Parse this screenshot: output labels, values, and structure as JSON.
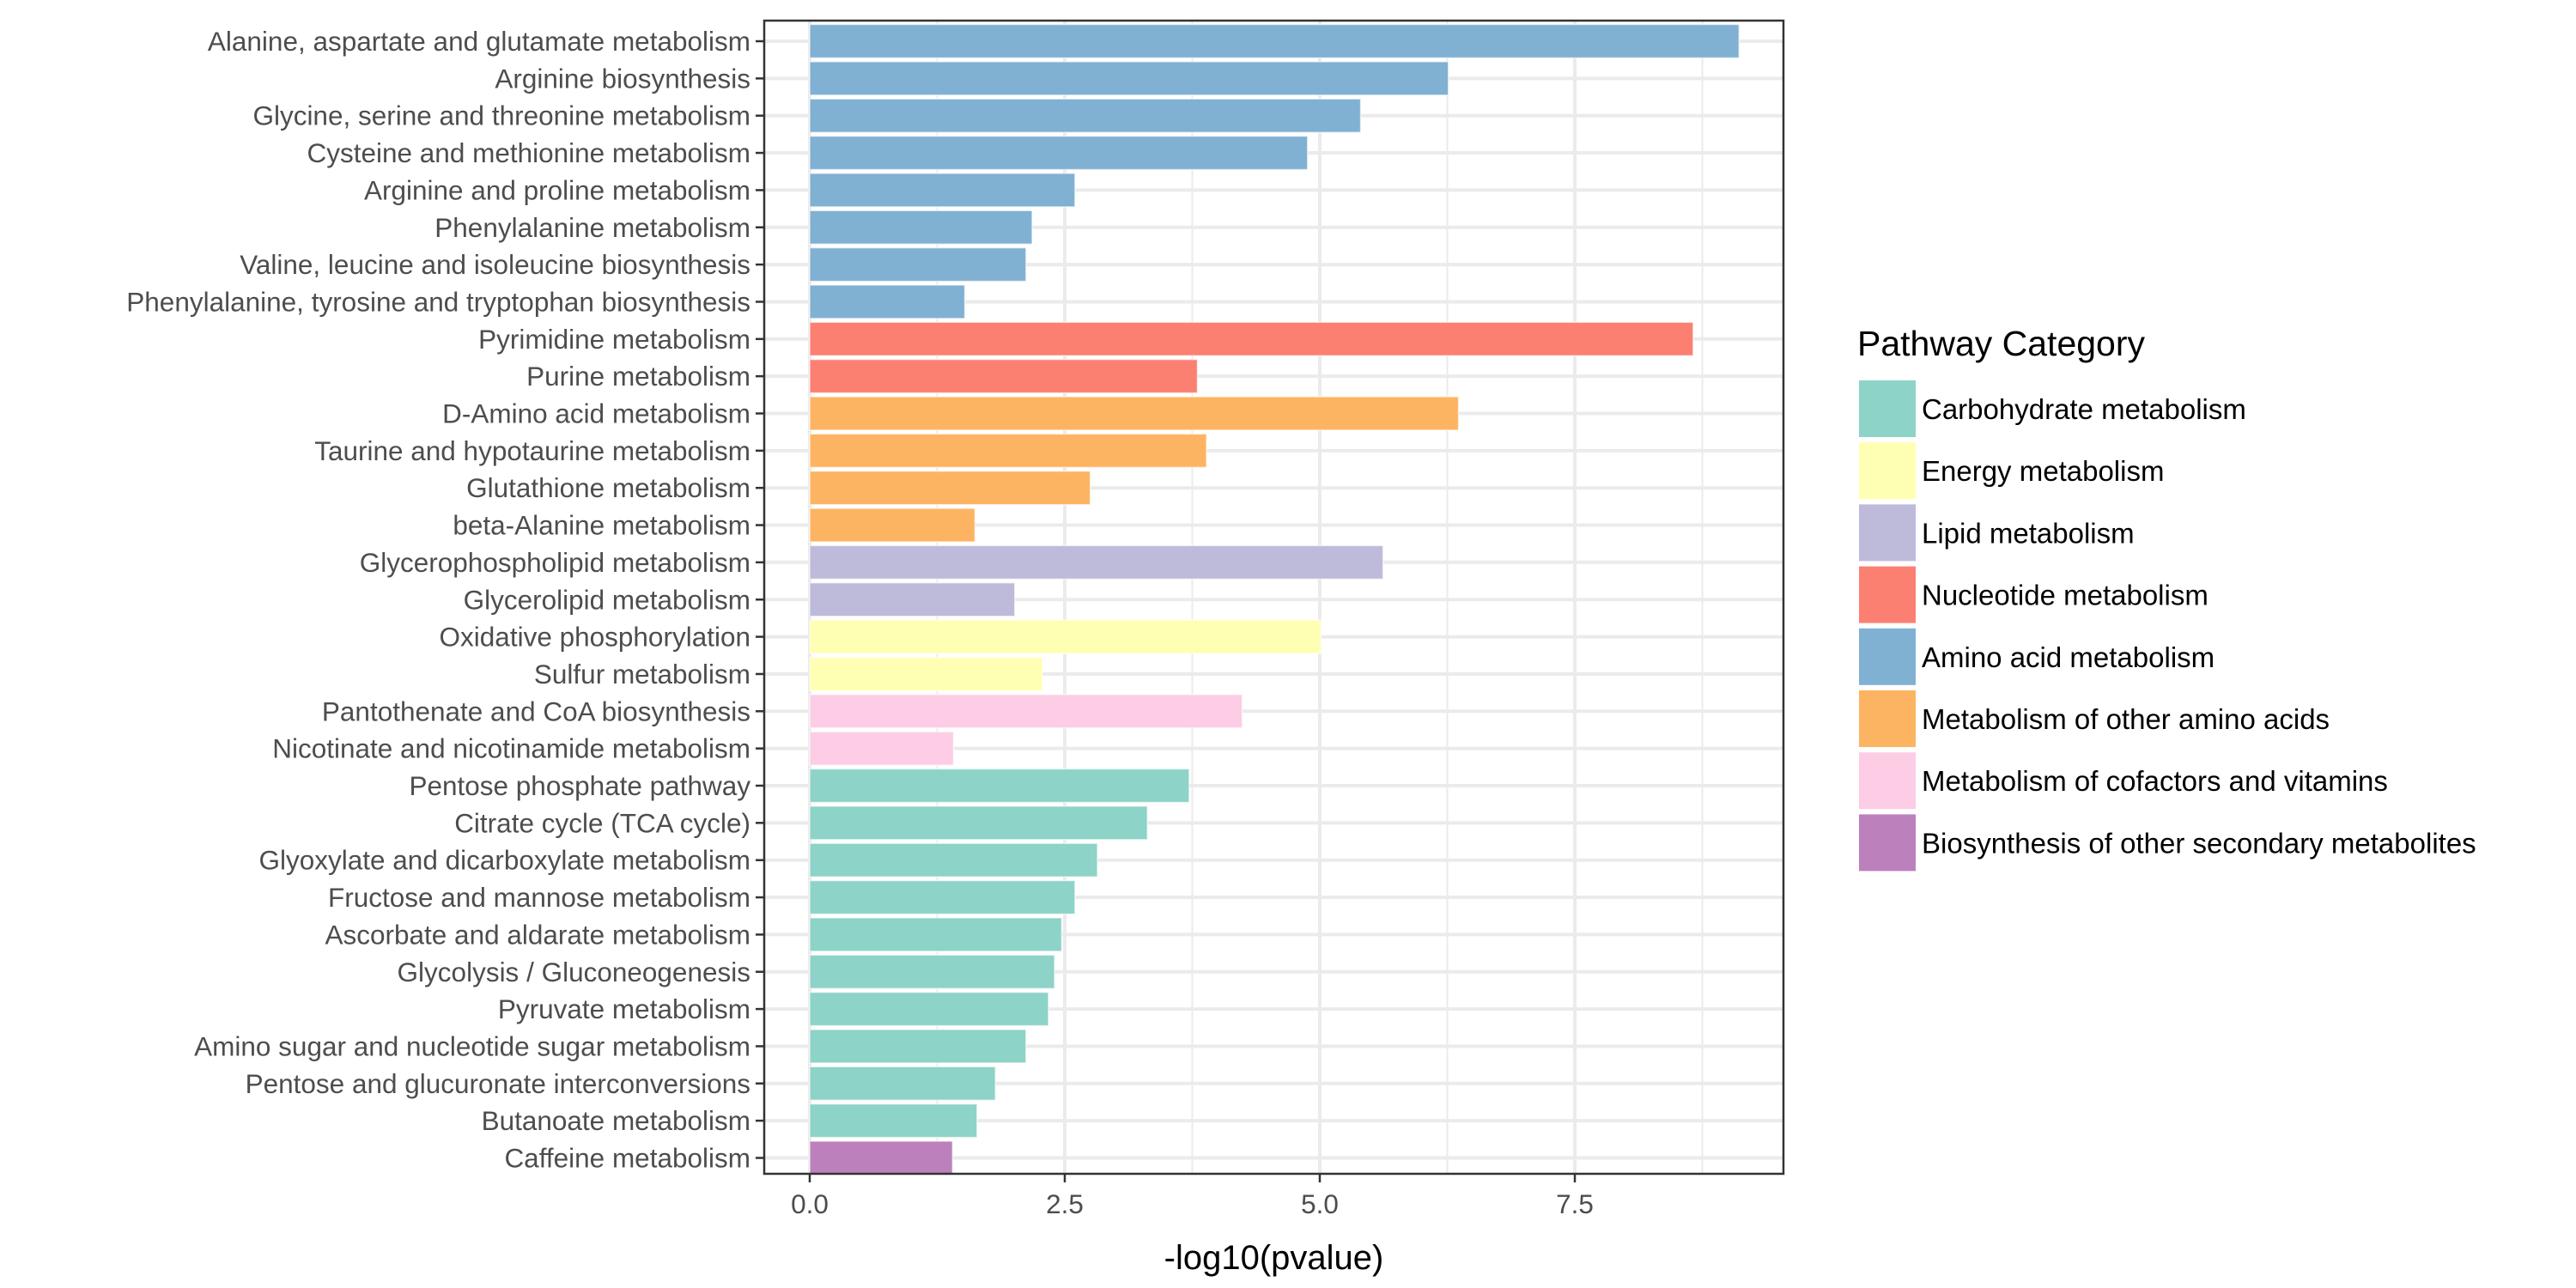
{
  "chart_data": {
    "type": "bar",
    "orientation": "horizontal",
    "title": "",
    "xlabel": "-log10(pvalue)",
    "ylabel": "",
    "xlim": [
      -0.446,
      9.545
    ],
    "x_ticks": [
      0.0,
      2.5,
      5.0,
      7.5
    ],
    "x_tick_labels": [
      "0.0",
      "2.5",
      "5.0",
      "7.5"
    ],
    "x_minor_ticks": [
      1.25,
      3.75,
      6.25,
      8.75
    ],
    "grid": true,
    "legend": {
      "title": "Pathway Category",
      "position": "right",
      "entries": [
        {
          "label": "Carbohydrate metabolism",
          "color": "#8DD3C7"
        },
        {
          "label": "Energy metabolism",
          "color": "#FFFFB3"
        },
        {
          "label": "Lipid metabolism",
          "color": "#BEBADA"
        },
        {
          "label": "Nucleotide metabolism",
          "color": "#FB8072"
        },
        {
          "label": "Amino acid metabolism",
          "color": "#80B1D3"
        },
        {
          "label": "Metabolism of other amino acids",
          "color": "#FDB462"
        },
        {
          "label": "Metabolism of cofactors and vitamins",
          "color": "#FCCDE5"
        },
        {
          "label": "Biosynthesis of other secondary metabolites",
          "color": "#BC80BD"
        }
      ]
    },
    "categories": [
      "Alanine, aspartate and glutamate metabolism",
      "Arginine biosynthesis",
      "Glycine, serine and threonine metabolism",
      "Cysteine and methionine metabolism",
      "Arginine and proline metabolism",
      "Phenylalanine metabolism",
      "Valine, leucine and isoleucine biosynthesis",
      "Phenylalanine, tyrosine and tryptophan biosynthesis",
      "Pyrimidine metabolism",
      "Purine metabolism",
      "D-Amino acid metabolism",
      "Taurine and hypotaurine metabolism",
      "Glutathione metabolism",
      "beta-Alanine metabolism",
      "Glycerophospholipid metabolism",
      "Glycerolipid metabolism",
      "Oxidative phosphorylation",
      "Sulfur metabolism",
      "Pantothenate and CoA biosynthesis",
      "Nicotinate and nicotinamide metabolism",
      "Pentose phosphate pathway",
      "Citrate cycle (TCA cycle)",
      "Glyoxylate and dicarboxylate metabolism",
      "Fructose and mannose metabolism",
      "Ascorbate and aldarate metabolism",
      "Glycolysis / Gluconeogenesis",
      "Pyruvate metabolism",
      "Amino sugar and nucleotide sugar metabolism",
      "Pentose and glucuronate interconversions",
      "Butanoate metabolism",
      "Caffeine metabolism"
    ],
    "values": [
      9.11,
      6.26,
      5.4,
      4.88,
      2.6,
      2.18,
      2.12,
      1.52,
      8.66,
      3.8,
      6.36,
      3.89,
      2.75,
      1.62,
      5.62,
      2.01,
      5.01,
      2.28,
      4.24,
      1.41,
      3.72,
      3.31,
      2.82,
      2.6,
      2.47,
      2.4,
      2.34,
      2.12,
      1.82,
      1.64,
      1.4
    ],
    "category_group": [
      "Amino acid metabolism",
      "Amino acid metabolism",
      "Amino acid metabolism",
      "Amino acid metabolism",
      "Amino acid metabolism",
      "Amino acid metabolism",
      "Amino acid metabolism",
      "Amino acid metabolism",
      "Nucleotide metabolism",
      "Nucleotide metabolism",
      "Metabolism of other amino acids",
      "Metabolism of other amino acids",
      "Metabolism of other amino acids",
      "Metabolism of other amino acids",
      "Lipid metabolism",
      "Lipid metabolism",
      "Energy metabolism",
      "Energy metabolism",
      "Metabolism of cofactors and vitamins",
      "Metabolism of cofactors and vitamins",
      "Carbohydrate metabolism",
      "Carbohydrate metabolism",
      "Carbohydrate metabolism",
      "Carbohydrate metabolism",
      "Carbohydrate metabolism",
      "Carbohydrate metabolism",
      "Carbohydrate metabolism",
      "Carbohydrate metabolism",
      "Carbohydrate metabolism",
      "Carbohydrate metabolism",
      "Biosynthesis of other secondary metabolites"
    ]
  }
}
